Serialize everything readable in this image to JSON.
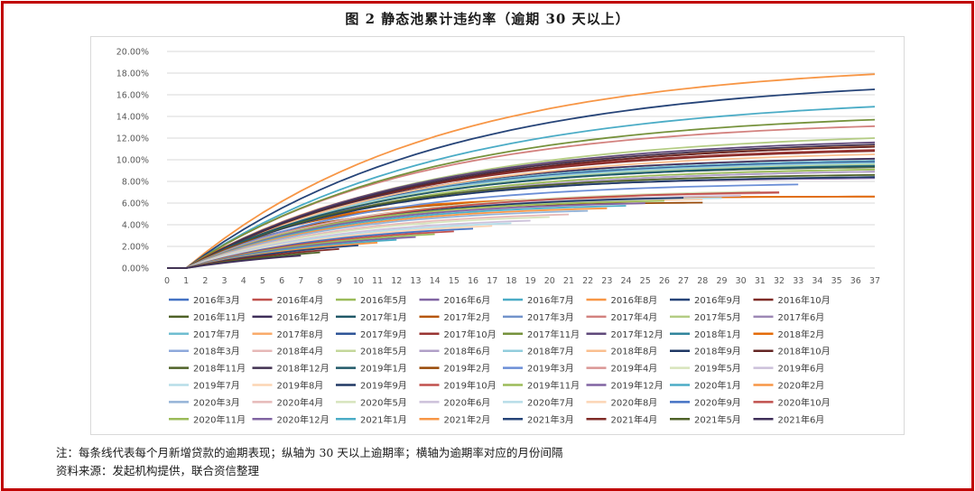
{
  "title": "图 2   静态池累计违约率（逾期 30 天以上）",
  "note": "注：每条线代表每个月新增贷款的逾期表现；纵轴为 30 天以上逾期率；横轴为逾期率对应的月份间隔",
  "source": "资料来源：发起机构提供，联合资信整理",
  "colors": {
    "frame": "#c00000",
    "grid": "#d9d9d9",
    "text": "#595959"
  },
  "chart_data": {
    "type": "line",
    "title": "",
    "xlabel": "",
    "ylabel": "",
    "x": [
      0,
      1,
      2,
      3,
      4,
      5,
      6,
      7,
      8,
      9,
      10,
      11,
      12,
      13,
      14,
      15,
      16,
      17,
      18,
      19,
      20,
      21,
      22,
      23,
      24,
      25,
      26,
      27,
      28,
      29,
      30,
      31,
      32,
      33,
      34,
      35,
      36,
      37
    ],
    "ylim": [
      0,
      20
    ],
    "yticks": [
      "0.00%",
      "2.00%",
      "4.00%",
      "6.00%",
      "8.00%",
      "10.00%",
      "12.00%",
      "14.00%",
      "16.00%",
      "18.00%",
      "20.00%"
    ],
    "grid": true,
    "legend_position": "bottom",
    "series": [
      {
        "name": "2016年3月",
        "color": "#4472c4",
        "last": 37,
        "final": 9.6,
        "k": 0.11
      },
      {
        "name": "2016年4月",
        "color": "#c0504d",
        "last": 37,
        "final": 11.2,
        "k": 0.085
      },
      {
        "name": "2016年5月",
        "color": "#9bbb59",
        "last": 37,
        "final": 9.1,
        "k": 0.1
      },
      {
        "name": "2016年6月",
        "color": "#8064a2",
        "last": 37,
        "final": 8.3,
        "k": 0.12
      },
      {
        "name": "2016年7月",
        "color": "#4bacc6",
        "last": 37,
        "final": 14.9,
        "k": 0.075
      },
      {
        "name": "2016年8月",
        "color": "#f79646",
        "last": 37,
        "final": 17.9,
        "k": 0.078
      },
      {
        "name": "2016年9月",
        "color": "#264478",
        "last": 37,
        "final": 16.5,
        "k": 0.075
      },
      {
        "name": "2016年10月",
        "color": "#7f2b27",
        "last": 37,
        "final": 10.8,
        "k": 0.09
      },
      {
        "name": "2016年11月",
        "color": "#4f6228",
        "last": 37,
        "final": 9.3,
        "k": 0.11
      },
      {
        "name": "2016年12月",
        "color": "#3f2f5a",
        "last": 37,
        "final": 10.1,
        "k": 0.1
      },
      {
        "name": "2017年1月",
        "color": "#215968",
        "last": 37,
        "final": 9.9,
        "k": 0.1
      },
      {
        "name": "2017年2月",
        "color": "#b65708",
        "last": 37,
        "final": 6.6,
        "k": 0.16
      },
      {
        "name": "2017年3月",
        "color": "#7293cb",
        "last": 37,
        "final": 8.9,
        "k": 0.1
      },
      {
        "name": "2017年4月",
        "color": "#d3827f",
        "last": 37,
        "final": 13.1,
        "k": 0.085
      },
      {
        "name": "2017年5月",
        "color": "#b4cc84",
        "last": 37,
        "final": 12.0,
        "k": 0.08
      },
      {
        "name": "2017年6月",
        "color": "#9d88b5",
        "last": 37,
        "final": 9.4,
        "k": 0.1
      },
      {
        "name": "2017年7月",
        "color": "#6fbdd1",
        "last": 37,
        "final": 9.9,
        "k": 0.1
      },
      {
        "name": "2017年8月",
        "color": "#f9ab6b",
        "last": 37,
        "final": 11.3,
        "k": 0.09
      },
      {
        "name": "2017年9月",
        "color": "#2f5597",
        "last": 37,
        "final": 9.8,
        "k": 0.1
      },
      {
        "name": "2017年10月",
        "color": "#993533",
        "last": 37,
        "final": 10.9,
        "k": 0.09
      },
      {
        "name": "2017年11月",
        "color": "#76923c",
        "last": 37,
        "final": 13.7,
        "k": 0.08
      },
      {
        "name": "2017年12月",
        "color": "#5f497a",
        "last": 37,
        "final": 11.6,
        "k": 0.085
      },
      {
        "name": "2018年1月",
        "color": "#31859c",
        "last": 37,
        "final": 9.5,
        "k": 0.1
      },
      {
        "name": "2018年2月",
        "color": "#e46c0a",
        "last": 37,
        "final": 6.6,
        "k": 0.17
      },
      {
        "name": "2018年3月",
        "color": "#8ea9db",
        "last": 37,
        "final": 8.4,
        "k": 0.11
      },
      {
        "name": "2018年4月",
        "color": "#e6b8b7",
        "last": 37,
        "final": 8.9,
        "k": 0.1
      },
      {
        "name": "2018年5月",
        "color": "#c4d79b",
        "last": 37,
        "final": 9.6,
        "k": 0.1
      },
      {
        "name": "2018年6月",
        "color": "#b1a0c7",
        "last": 37,
        "final": 8.9,
        "k": 0.1
      },
      {
        "name": "2018年7月",
        "color": "#92cddc",
        "last": 37,
        "final": 9.7,
        "k": 0.1
      },
      {
        "name": "2018年8月",
        "color": "#fabf8f",
        "last": 37,
        "final": 10.5,
        "k": 0.09
      },
      {
        "name": "2018年9月",
        "color": "#1f3864",
        "last": 37,
        "final": 8.4,
        "k": 0.11
      },
      {
        "name": "2018年10月",
        "color": "#632523",
        "last": 37,
        "final": 11.2,
        "k": 0.085
      },
      {
        "name": "2018年11月",
        "color": "#4f6228",
        "last": 37,
        "final": 8.6,
        "k": 0.11
      },
      {
        "name": "2018年12月",
        "color": "#403151",
        "last": 37,
        "final": 11.4,
        "k": 0.085
      },
      {
        "name": "2019年1月",
        "color": "#215968",
        "last": 37,
        "final": 9.4,
        "k": 0.1
      },
      {
        "name": "2019年2月",
        "color": "#974806",
        "last": 28,
        "final": 6.1,
        "k": 0.16
      },
      {
        "name": "2019年3月",
        "color": "#6b8ed6",
        "last": 33,
        "final": 7.8,
        "k": 0.11
      },
      {
        "name": "2019年4月",
        "color": "#da9694",
        "last": 32,
        "final": 7.0,
        "k": 0.12
      },
      {
        "name": "2019年5月",
        "color": "#d8e4bc",
        "last": 31,
        "final": 7.2,
        "k": 0.11
      },
      {
        "name": "2019年6月",
        "color": "#ccc0da",
        "last": 30,
        "final": 6.8,
        "k": 0.12
      },
      {
        "name": "2019年7月",
        "color": "#b7dee8",
        "last": 29,
        "final": 6.6,
        "k": 0.12
      },
      {
        "name": "2019年8月",
        "color": "#fcd5b4",
        "last": 28,
        "final": 6.5,
        "k": 0.12
      },
      {
        "name": "2019年9月",
        "color": "#203864",
        "last": 27,
        "final": 6.7,
        "k": 0.12
      },
      {
        "name": "2019年10月",
        "color": "#c0504d",
        "last": 32,
        "final": 7.1,
        "k": 0.11
      },
      {
        "name": "2019年11月",
        "color": "#9bbb59",
        "last": 26,
        "final": 6.4,
        "k": 0.13
      },
      {
        "name": "2019年12月",
        "color": "#8064a2",
        "last": 25,
        "final": 6.2,
        "k": 0.13
      },
      {
        "name": "2020年1月",
        "color": "#4bacc6",
        "last": 24,
        "final": 6.0,
        "k": 0.13
      },
      {
        "name": "2020年2月",
        "color": "#f79646",
        "last": 23,
        "final": 5.8,
        "k": 0.13
      },
      {
        "name": "2020年3月",
        "color": "#95b3d7",
        "last": 22,
        "final": 5.6,
        "k": 0.13
      },
      {
        "name": "2020年4月",
        "color": "#e6b9b8",
        "last": 21,
        "final": 5.3,
        "k": 0.13
      },
      {
        "name": "2020年5月",
        "color": "#d7e4bd",
        "last": 20,
        "final": 5.1,
        "k": 0.13
      },
      {
        "name": "2020年6月",
        "color": "#ccc1da",
        "last": 19,
        "final": 4.8,
        "k": 0.13
      },
      {
        "name": "2020年7月",
        "color": "#b7dde8",
        "last": 18,
        "final": 4.6,
        "k": 0.13
      },
      {
        "name": "2020年8月",
        "color": "#fcd5b5",
        "last": 17,
        "final": 4.4,
        "k": 0.13
      },
      {
        "name": "2020年9月",
        "color": "#4472c4",
        "last": 16,
        "final": 4.2,
        "k": 0.13
      },
      {
        "name": "2020年10月",
        "color": "#c0504d",
        "last": 15,
        "final": 4.0,
        "k": 0.13
      },
      {
        "name": "2020年11月",
        "color": "#9bbb59",
        "last": 14,
        "final": 3.8,
        "k": 0.13
      },
      {
        "name": "2020年12月",
        "color": "#8064a2",
        "last": 13,
        "final": 3.6,
        "k": 0.13
      },
      {
        "name": "2021年1月",
        "color": "#4bacc6",
        "last": 12,
        "final": 3.4,
        "k": 0.13
      },
      {
        "name": "2021年2月",
        "color": "#f79646",
        "last": 11,
        "final": 3.2,
        "k": 0.13
      },
      {
        "name": "2021年3月",
        "color": "#264478",
        "last": 10,
        "final": 3.0,
        "k": 0.13
      },
      {
        "name": "2021年4月",
        "color": "#7f2b27",
        "last": 9,
        "final": 2.7,
        "k": 0.13
      },
      {
        "name": "2021年5月",
        "color": "#4f6228",
        "last": 8,
        "final": 2.4,
        "k": 0.13
      },
      {
        "name": "2021年6月",
        "color": "#3f2f5a",
        "last": 7,
        "final": 2.1,
        "k": 0.13
      }
    ]
  }
}
